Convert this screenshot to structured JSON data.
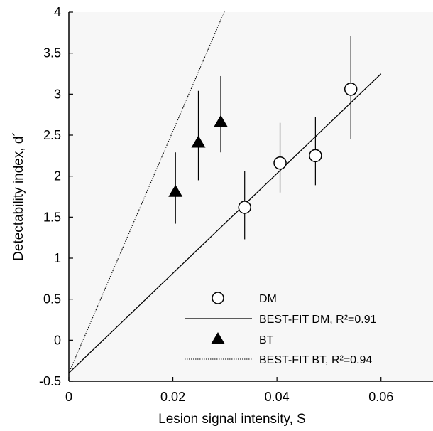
{
  "chart_data": {
    "type": "scatter",
    "title": "",
    "xlabel": "Lesion signal intensity, S",
    "ylabel": "Detectability index, d´",
    "xlim": [
      0,
      0.07
    ],
    "ylim": [
      -0.5,
      4
    ],
    "xticks": [
      "0",
      "0.02",
      "0.04",
      "0.06"
    ],
    "yticks": [
      "-0.5",
      "0",
      "0.5",
      "1",
      "1.5",
      "2",
      "2.5",
      "3",
      "3.5",
      "4"
    ],
    "background": "#f7f7f7",
    "grid": false,
    "legend_position": "bottom-right",
    "series": [
      {
        "name": "DM",
        "marker": "open-circle",
        "points": [
          {
            "x": 0.0338,
            "y": 1.62,
            "err_low": 1.23,
            "err_high": 2.06
          },
          {
            "x": 0.0406,
            "y": 2.16,
            "err_low": 1.8,
            "err_high": 2.65
          },
          {
            "x": 0.0474,
            "y": 2.25,
            "err_low": 1.89,
            "err_high": 2.72
          },
          {
            "x": 0.0542,
            "y": 3.06,
            "err_low": 2.45,
            "err_high": 3.71
          }
        ]
      },
      {
        "name": "BEST-FIT DM, R²=0.91",
        "line": "solid",
        "intercept": -0.4,
        "slope": 60.8,
        "x_range": [
          0,
          0.06
        ]
      },
      {
        "name": "BT",
        "marker": "filled-triangle",
        "points": [
          {
            "x": 0.0205,
            "y": 1.8,
            "err_low": 1.42,
            "err_high": 2.29
          },
          {
            "x": 0.0249,
            "y": 2.4,
            "err_low": 1.95,
            "err_high": 3.04
          },
          {
            "x": 0.0292,
            "y": 2.65,
            "err_low": 2.29,
            "err_high": 3.22
          }
        ]
      },
      {
        "name": "BEST-FIT BT, R²=0.94",
        "line": "dotted",
        "intercept": -0.4,
        "slope": 147.4,
        "x_range": [
          0,
          0.0299
        ]
      }
    ]
  }
}
